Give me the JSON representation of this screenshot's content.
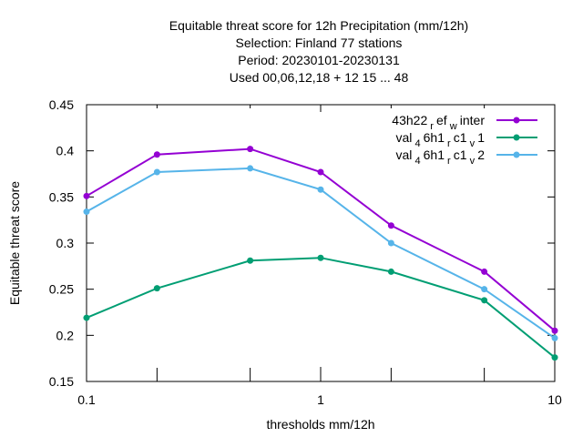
{
  "chart_data": {
    "type": "line",
    "title_lines": [
      "Equitable threat score  for 12h Precipitation (mm/12h)",
      "Selection: Finland     77 stations",
      "Period: 20230101-20230131",
      "Used  00,06,12,18  + 12 15 ... 48"
    ],
    "xlabel": "thresholds mm/12h",
    "ylabel": "Equitable threat score",
    "xscale": "log",
    "xlim": [
      0.1,
      10
    ],
    "ylim": [
      0.15,
      0.45
    ],
    "xticks": [
      0.1,
      1,
      10
    ],
    "xtick_labels": [
      "0.1",
      "1",
      "10"
    ],
    "yticks": [
      0.15,
      0.2,
      0.25,
      0.3,
      0.35,
      0.4,
      0.45
    ],
    "ytick_labels": [
      "0.15",
      "0.2",
      "0.25",
      "0.3",
      "0.35",
      "0.4",
      "0.45"
    ],
    "grid": false,
    "legend_position": "top-right",
    "x": [
      0.1,
      0.2,
      0.5,
      1,
      2,
      5,
      10
    ],
    "series": [
      {
        "name": "43h22_ref_winter",
        "legend": {
          "base": "43h22",
          "sub1": "r",
          "mid": "ef",
          "sub2": "w",
          "tail": "inter"
        },
        "color": "#9400d3",
        "values": [
          0.351,
          0.396,
          0.402,
          0.377,
          0.319,
          0.269,
          0.205
        ]
      },
      {
        "name": "val_46h1_rc1_v1",
        "legend": {
          "base": "val",
          "sub1": "4",
          "mid": "6h1",
          "sub2": "r",
          "mid2": "c1",
          "sub3": "v",
          "tail": "1"
        },
        "color": "#009e73",
        "values": [
          0.219,
          0.251,
          0.281,
          0.284,
          0.269,
          0.238,
          0.176
        ]
      },
      {
        "name": "val_46h1_rc1_v2",
        "legend": {
          "base": "val",
          "sub1": "4",
          "mid": "6h1",
          "sub2": "r",
          "mid2": "c1",
          "sub3": "v",
          "tail": "2"
        },
        "color": "#56b4e9",
        "values": [
          0.334,
          0.377,
          0.381,
          0.358,
          0.3,
          0.25,
          0.197
        ]
      }
    ]
  }
}
